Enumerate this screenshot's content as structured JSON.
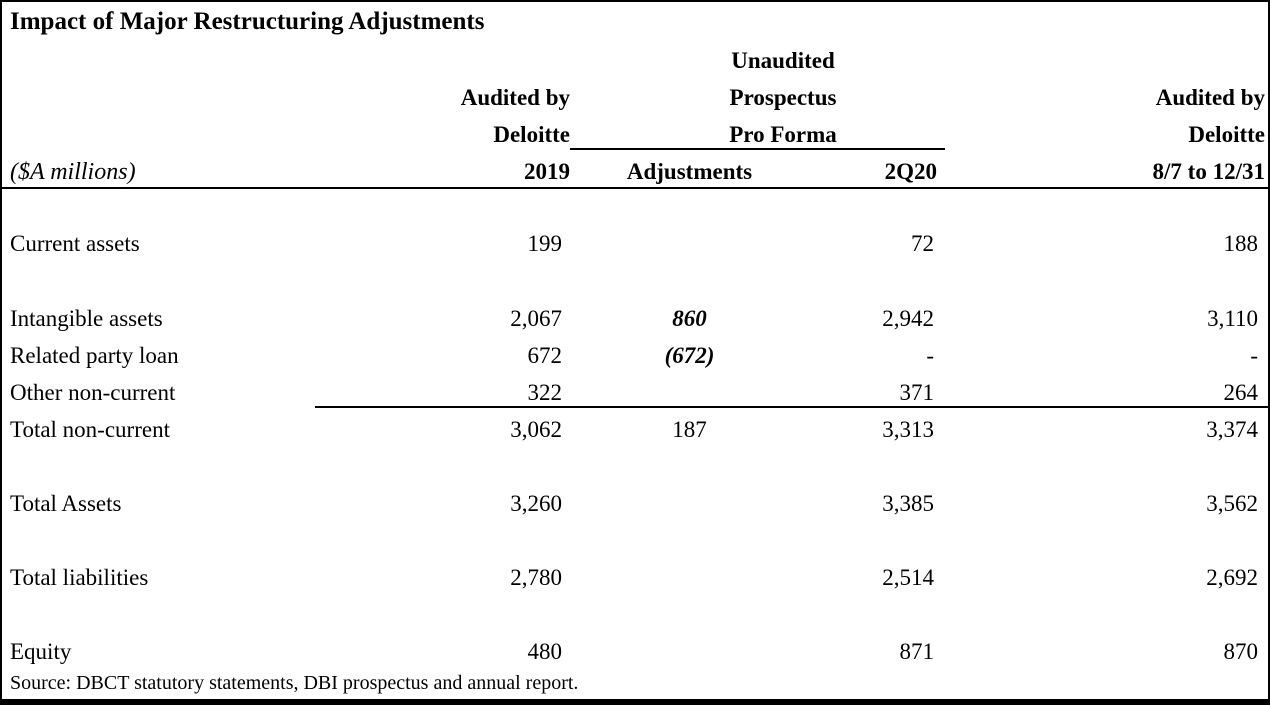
{
  "title": "Impact of Major Restructuring Adjustments",
  "units_label": "($A millions)",
  "columns": {
    "c2019": {
      "line1": "Audited by",
      "line2": "Deloitte",
      "line3": "2019"
    },
    "group": {
      "line1": "Unaudited",
      "line2": "Prospectus",
      "line3": "Pro Forma"
    },
    "adjustments": {
      "label": "Adjustments"
    },
    "q2q20": {
      "label": "2Q20"
    },
    "c2020": {
      "line1": "Audited by",
      "line2": "Deloitte",
      "line3": "8/7 to 12/31"
    }
  },
  "rows": [
    {
      "label": "Current assets",
      "y2019": "199",
      "adjustments": "",
      "q2q20": "72",
      "aud2020": "188"
    },
    {
      "label": "Intangible assets",
      "y2019": "2,067",
      "adjustments": "860",
      "q2q20": "2,942",
      "aud2020": "3,110"
    },
    {
      "label": "Related party loan",
      "y2019": "672",
      "adjustments": "(672)",
      "q2q20": "-",
      "aud2020": "-"
    },
    {
      "label": "Other non-current",
      "y2019": "322",
      "adjustments": "",
      "q2q20": "371",
      "aud2020": "264"
    },
    {
      "label": "Total non-current",
      "y2019": "3,062",
      "adjustments": "187",
      "q2q20": "3,313",
      "aud2020": "3,374"
    },
    {
      "label": "Total Assets",
      "y2019": "3,260",
      "adjustments": "",
      "q2q20": "3,385",
      "aud2020": "3,562"
    },
    {
      "label": "Total liabilities",
      "y2019": "2,780",
      "adjustments": "",
      "q2q20": "2,514",
      "aud2020": "2,692"
    },
    {
      "label": "Equity",
      "y2019": "480",
      "adjustments": "",
      "q2q20": "871",
      "aud2020": "870"
    }
  ],
  "source": "Source: DBCT statutory statements, DBI prospectus and annual report.",
  "colors": {
    "text": "#000000",
    "background": "#ffffff",
    "rule": "#000000"
  }
}
